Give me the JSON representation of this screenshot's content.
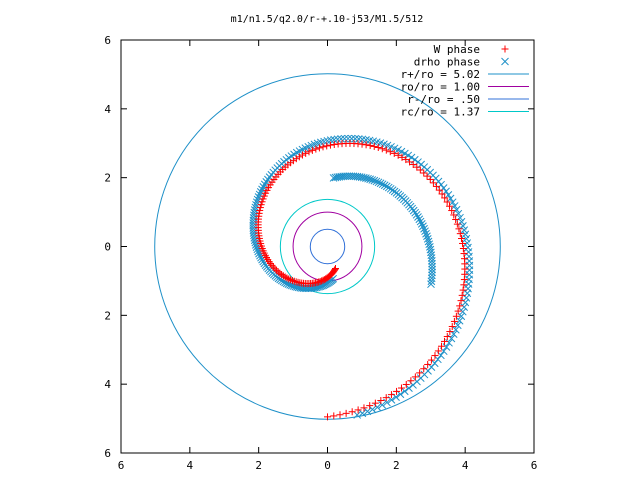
{
  "chart_data": {
    "type": "scatter",
    "title": "m1/n1.5/q2.0/r-+.10-j53/M1.5/512",
    "xlabel": "",
    "ylabel": "",
    "xlim": [
      -6,
      6
    ],
    "ylim": [
      -6,
      6
    ],
    "x_tick_labels": [
      "6",
      "4",
      "2",
      "0",
      "2",
      "4",
      "6"
    ],
    "y_tick_labels": [
      "6",
      "4",
      "2",
      "0",
      "2",
      "4",
      "6"
    ],
    "grid": false,
    "legend_position": "top-right",
    "series": [
      {
        "name": "W phase",
        "kind": "points",
        "marker": "plus",
        "color": "#ff0000",
        "spiral": {
          "r_start": 0.68,
          "r_end": 4.95,
          "theta_start_deg": -70,
          "theta_end_deg": -450,
          "n_points": 180
        }
      },
      {
        "name": "drho phase",
        "kind": "points",
        "marker": "cross",
        "color": "#1e90c8",
        "spiral": {
          "r_start": 0.95,
          "r_end": 4.97,
          "theta_start_deg": -80,
          "theta_end_deg": -440,
          "n_points": 200
        },
        "extra_arc": {
          "r_start": 2.0,
          "r_end": 3.2,
          "theta_start_deg": 85,
          "theta_end_deg": -20,
          "n_points": 70
        }
      },
      {
        "name": "r+/ro = 5.02",
        "kind": "circle",
        "radius": 5.02,
        "color": "#1e90c8"
      },
      {
        "name": "ro/ro = 1.00",
        "kind": "circle",
        "radius": 1.0,
        "color": "#a000a0"
      },
      {
        "name": "r-/ro = .50",
        "kind": "circle",
        "radius": 0.5,
        "color": "#3070d8"
      },
      {
        "name": "rc/ro = 1.37",
        "kind": "circle",
        "radius": 1.37,
        "color": "#00c8c8"
      }
    ]
  }
}
